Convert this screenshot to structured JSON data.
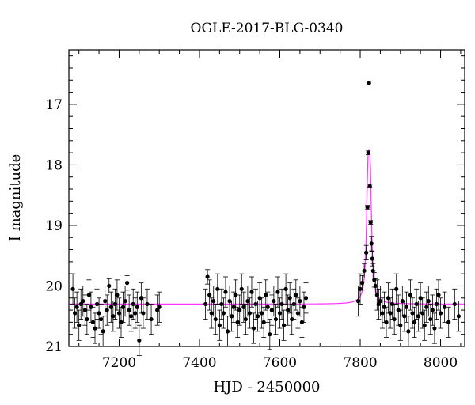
{
  "chart_data": {
    "type": "scatter",
    "title": "OGLE-2017-BLG-0340",
    "xlabel": "HJD - 2450000",
    "ylabel": "I magnitude",
    "xlim": [
      7075,
      8060
    ],
    "ylim": [
      21,
      16.1
    ],
    "y_inverted": true,
    "x_ticks": [
      7200,
      7400,
      7600,
      7800,
      8000
    ],
    "y_ticks": [
      17,
      18,
      19,
      20,
      21
    ],
    "grid": false,
    "legend": "none",
    "colors": {
      "data": "#000000",
      "model": "#ff33ff"
    },
    "model_curve": {
      "name": "",
      "baseline": 20.3,
      "peak_mag": 17.75,
      "t0": 7822,
      "width": 7
    },
    "series": [
      {
        "name": "",
        "x": [
          7085,
          7090,
          7095,
          7100,
          7105,
          7110,
          7115,
          7120,
          7125,
          7130,
          7135,
          7140,
          7145,
          7150,
          7155,
          7160,
          7165,
          7170,
          7175,
          7180,
          7185,
          7190,
          7195,
          7200,
          7205,
          7210,
          7215,
          7220,
          7225,
          7230,
          7235,
          7240,
          7245,
          7250,
          7255,
          7260,
          7270,
          7280,
          7295,
          7300,
          7415,
          7420,
          7425,
          7430,
          7435,
          7440,
          7445,
          7450,
          7455,
          7460,
          7465,
          7470,
          7475,
          7480,
          7485,
          7490,
          7495,
          7500,
          7505,
          7510,
          7515,
          7520,
          7525,
          7530,
          7535,
          7540,
          7545,
          7550,
          7555,
          7560,
          7565,
          7570,
          7575,
          7580,
          7585,
          7590,
          7595,
          7600,
          7605,
          7610,
          7615,
          7620,
          7625,
          7630,
          7635,
          7640,
          7645,
          7650,
          7655,
          7660,
          7665,
          7795,
          7800,
          7805,
          7810,
          7815,
          7818,
          7820,
          7822,
          7824,
          7826,
          7828,
          7830,
          7832,
          7835,
          7838,
          7842,
          7846,
          7850,
          7855,
          7860,
          7865,
          7870,
          7875,
          7880,
          7885,
          7890,
          7895,
          7900,
          7905,
          7910,
          7915,
          7920,
          7925,
          7930,
          7935,
          7940,
          7945,
          7950,
          7955,
          7960,
          7965,
          7970,
          7975,
          7980,
          7985,
          7990,
          7995,
          8000,
          8010,
          8020,
          8035,
          8045
        ],
        "y": [
          20.05,
          20.45,
          20.35,
          20.65,
          20.3,
          20.25,
          20.4,
          20.55,
          20.15,
          20.35,
          20.6,
          20.7,
          20.3,
          20.45,
          20.55,
          20.75,
          20.25,
          20.4,
          20.0,
          20.35,
          20.5,
          20.3,
          20.15,
          20.45,
          20.6,
          20.35,
          20.25,
          19.95,
          20.4,
          20.5,
          20.3,
          20.45,
          20.35,
          20.9,
          20.2,
          20.45,
          20.3,
          20.55,
          20.4,
          20.35,
          20.3,
          19.85,
          20.15,
          20.45,
          20.25,
          20.55,
          20.05,
          20.65,
          20.3,
          20.45,
          20.1,
          20.75,
          20.25,
          20.5,
          20.35,
          20.15,
          20.6,
          20.4,
          20.05,
          20.35,
          20.55,
          20.25,
          20.45,
          20.1,
          20.7,
          20.3,
          20.5,
          20.2,
          20.45,
          20.6,
          20.15,
          20.35,
          20.8,
          20.4,
          20.25,
          20.55,
          20.1,
          20.45,
          20.3,
          20.65,
          20.05,
          20.4,
          20.2,
          20.55,
          20.3,
          20.15,
          20.45,
          20.25,
          20.6,
          20.35,
          20.2,
          20.25,
          20.05,
          19.95,
          19.75,
          19.45,
          18.7,
          17.8,
          16.65,
          18.35,
          18.95,
          19.3,
          19.55,
          19.75,
          19.9,
          20.0,
          20.15,
          20.3,
          20.25,
          20.45,
          20.35,
          20.6,
          20.2,
          20.45,
          20.3,
          20.55,
          20.05,
          20.4,
          20.65,
          20.25,
          20.5,
          20.35,
          20.75,
          20.15,
          20.45,
          20.6,
          20.3,
          20.5,
          20.2,
          20.45,
          20.65,
          20.35,
          20.25,
          20.55,
          20.4,
          20.7,
          20.3,
          20.15,
          20.45,
          20.35,
          20.6,
          20.3,
          20.5
        ]
      }
    ]
  }
}
